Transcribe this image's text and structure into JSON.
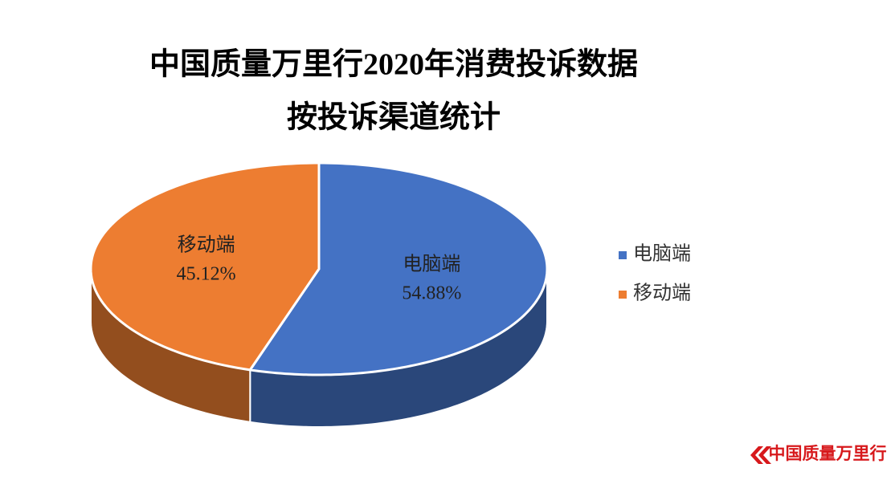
{
  "chart_data": {
    "type": "pie3d",
    "title": "中国质量万里行2020年消费投诉数据",
    "subtitle": "按投诉渠道统计",
    "categories": [
      "电脑端",
      "移动端"
    ],
    "values": [
      54.88,
      45.12
    ],
    "value_labels": [
      "54.88%",
      "45.12%"
    ],
    "colors": [
      "#4472c4",
      "#ed7d31"
    ],
    "legend": "right",
    "watermark": "中国质量万里行"
  }
}
